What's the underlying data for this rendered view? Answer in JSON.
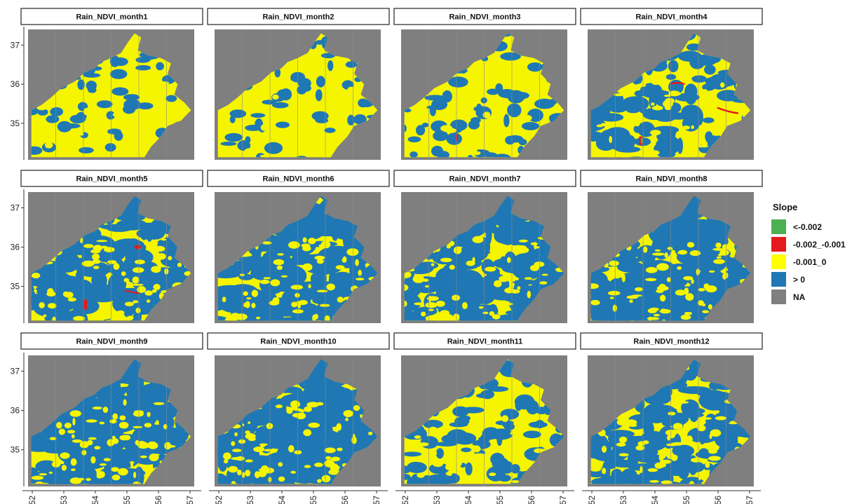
{
  "panels": [
    {
      "title": "Rain_NDVI_month1",
      "blue": 0.1,
      "seed": 1
    },
    {
      "title": "Rain_NDVI_month2",
      "blue": 0.12,
      "seed": 2
    },
    {
      "title": "Rain_NDVI_month3",
      "blue": 0.22,
      "seed": 3
    },
    {
      "title": "Rain_NDVI_month4",
      "blue": 0.35,
      "seed": 4
    },
    {
      "title": "Rain_NDVI_month5",
      "blue": 0.6,
      "seed": 5
    },
    {
      "title": "Rain_NDVI_month6",
      "blue": 0.72,
      "seed": 6
    },
    {
      "title": "Rain_NDVI_month7",
      "blue": 0.7,
      "seed": 7
    },
    {
      "title": "Rain_NDVI_month8",
      "blue": 0.74,
      "seed": 8
    },
    {
      "title": "Rain_NDVI_month9",
      "blue": 0.78,
      "seed": 9
    },
    {
      "title": "Rain_NDVI_month10",
      "blue": 0.76,
      "seed": 10
    },
    {
      "title": "Rain_NDVI_month11",
      "blue": 0.28,
      "seed": 11
    },
    {
      "title": "Rain_NDVI_month12",
      "blue": 0.55,
      "seed": 12
    }
  ],
  "x_ticks": [
    "52",
    "53",
    "54",
    "55",
    "56",
    "57"
  ],
  "y_ticks": [
    "37",
    "36",
    "35"
  ],
  "legend": {
    "title": "Slope",
    "items": [
      {
        "label": "<-0.002",
        "color": "#4caf50"
      },
      {
        "label": "-0.002_-0.001",
        "color": "#e41a1c"
      },
      {
        "label": "-0.001_0",
        "color": "#ffff00"
      },
      {
        "label": "> 0",
        "color": "#1f78b4"
      },
      {
        "label": "NA",
        "color": "#7f7f7f"
      }
    ]
  },
  "colors": {
    "na": "#7f7f7f",
    "yellow": "#f5f500",
    "blue": "#1f78b4",
    "red": "#e41a1c",
    "green": "#4caf50"
  }
}
